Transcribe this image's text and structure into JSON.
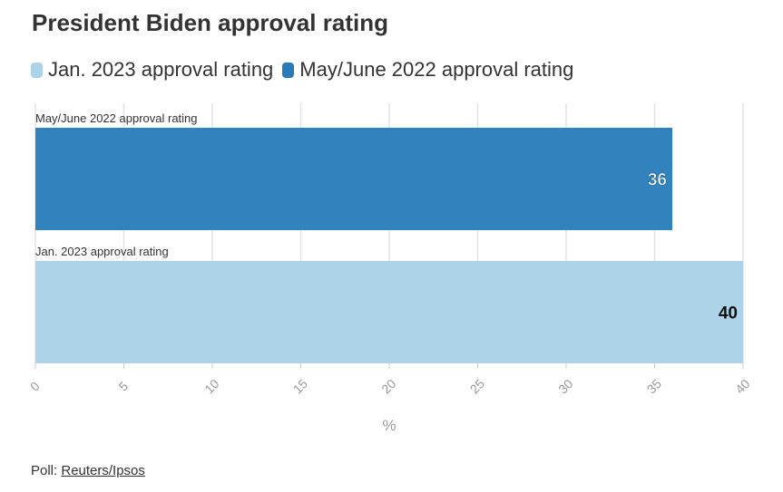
{
  "title": "President Biden approval rating",
  "legend": [
    {
      "label": "Jan. 2023 approval rating",
      "color": "#acd3e7"
    },
    {
      "label": "May/June 2022 approval rating",
      "color": "#2a7ab8"
    }
  ],
  "chart_data": {
    "type": "bar",
    "orientation": "horizontal",
    "categories": [
      "May/June 2022 approval rating",
      "Jan. 2023 approval rating"
    ],
    "values": [
      36,
      40
    ],
    "colors": [
      "#3182bd",
      "#acd3e7"
    ],
    "label_colors": [
      "#ffffff",
      "#111111"
    ],
    "xlabel": "%",
    "xlim": [
      0,
      40
    ],
    "xticks": [
      0,
      5,
      10,
      15,
      20,
      25,
      30,
      35,
      40
    ],
    "grid": true
  },
  "footer": {
    "prefix": "Poll: ",
    "source": "Reuters/Ipsos"
  }
}
